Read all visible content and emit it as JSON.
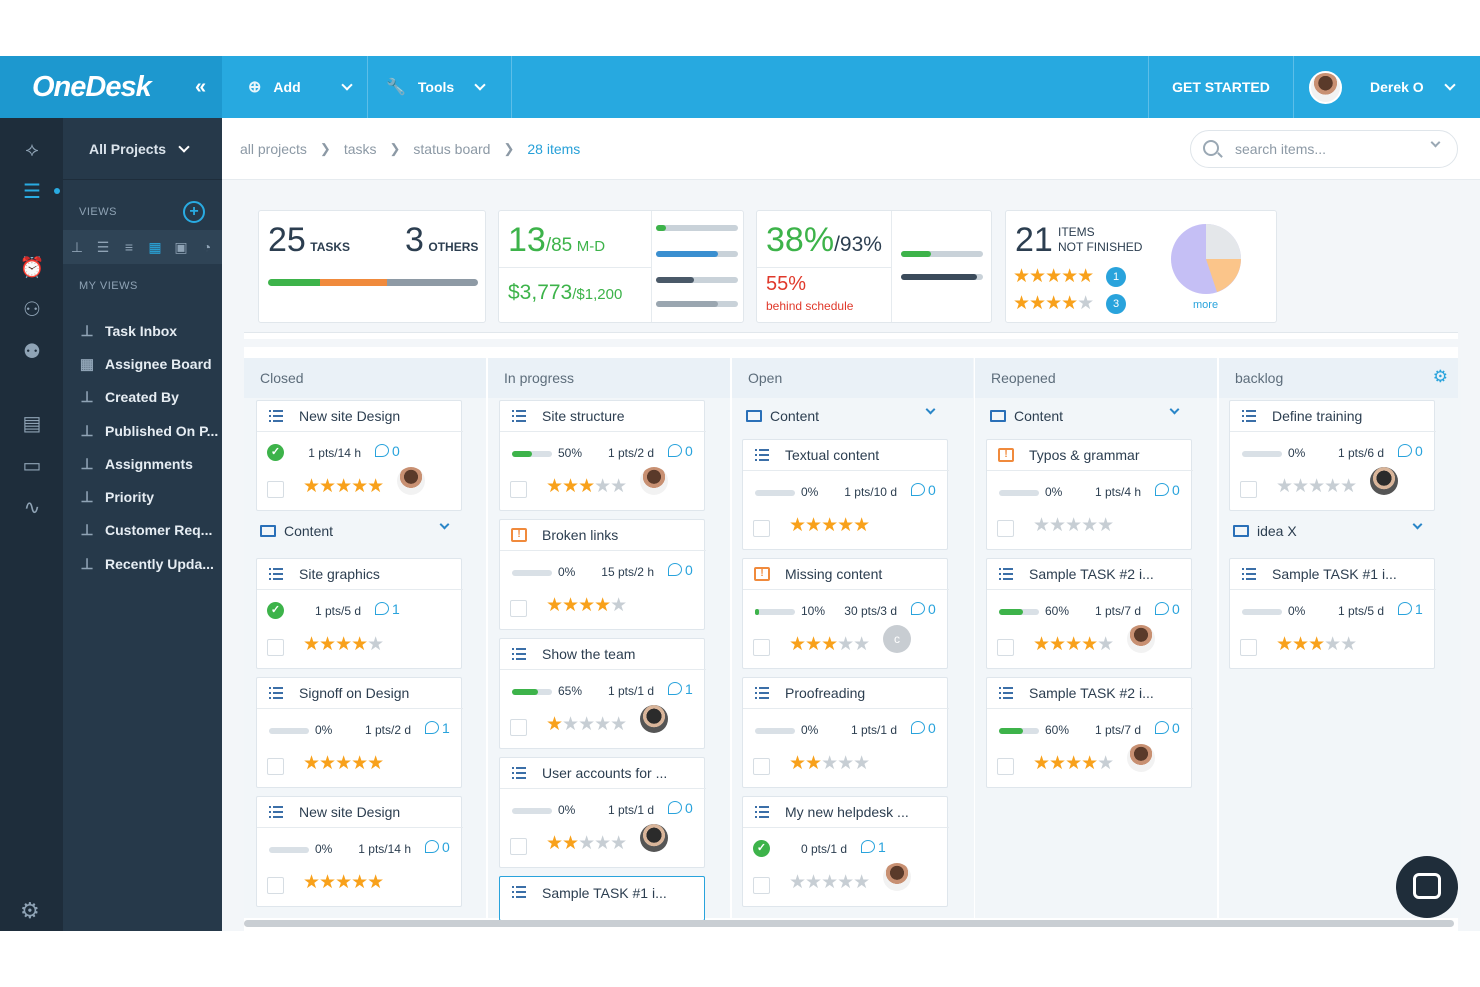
{
  "app": {
    "logo": "OneDesk",
    "collapse": "«"
  },
  "topbar": {
    "add_label": "Add",
    "tools_label": "Tools",
    "get_started": "GET STARTED",
    "user_name": "Derek O"
  },
  "sidebar": {
    "project_selector": "All Projects",
    "views_heading": "VIEWS",
    "my_views_heading": "MY VIEWS",
    "items": [
      {
        "label": "Task Inbox"
      },
      {
        "label": "Assignee Board"
      },
      {
        "label": "Created By"
      },
      {
        "label": "Published On P..."
      },
      {
        "label": "Assignments"
      },
      {
        "label": "Priority"
      },
      {
        "label": "Customer Req..."
      },
      {
        "label": "Recently Upda..."
      }
    ]
  },
  "breadcrumb": {
    "items": [
      "all projects",
      "tasks",
      "status board"
    ],
    "current": "28 items"
  },
  "search": {
    "placeholder": "search items..."
  },
  "stats": {
    "tasks_count": "25",
    "tasks_label": "TASKS",
    "others_count": "3",
    "others_label": "OTHERS",
    "md_value": "13",
    "md_total": "/85",
    "md_unit": "M-D",
    "cost_value": "$3,773",
    "cost_total": "/$1,200",
    "pct_done": "38%",
    "pct_total": "/93%",
    "behind_pct": "55%",
    "behind_label": "behind schedule",
    "items_count": "21",
    "items_label_1": "ITEMS",
    "items_label_2": "NOT FINISHED",
    "rating_badge_1": "1",
    "rating_badge_2": "3",
    "more": "more"
  },
  "columns": [
    {
      "title": "Closed"
    },
    {
      "title": "In progress"
    },
    {
      "title": "Open"
    },
    {
      "title": "Reopened"
    },
    {
      "title": "backlog"
    }
  ],
  "folders": {
    "closed_content": "Content",
    "open_content": "Content",
    "reopened_content": "Content",
    "backlog_idea": "idea X"
  },
  "cards": {
    "c1": {
      "title": "New site Design",
      "pts": "1 pts/14 h",
      "comments": "0"
    },
    "c2": {
      "title": "Site graphics",
      "pts": "1 pts/5 d",
      "comments": "1"
    },
    "c3": {
      "title": "Signoff on Design",
      "pct": "0%",
      "pts": "1 pts/2 d",
      "comments": "1"
    },
    "c4": {
      "title": "New site Design",
      "pct": "0%",
      "pts": "1 pts/14 h",
      "comments": "0"
    },
    "p1": {
      "title": "Site structure",
      "pct": "50%",
      "pts": "1 pts/2 d",
      "comments": "0"
    },
    "p2": {
      "title": "Broken links",
      "pct": "0%",
      "pts": "15 pts/2 h",
      "comments": "0"
    },
    "p3": {
      "title": "Show the team",
      "pct": "65%",
      "pts": "1 pts/1 d",
      "comments": "1"
    },
    "p4": {
      "title": "User accounts for ...",
      "pct": "0%",
      "pts": "1 pts/1 d",
      "comments": "0"
    },
    "p5": {
      "title": "Sample TASK #1 i..."
    },
    "o1": {
      "title": "Textual content",
      "pct": "0%",
      "pts": "1 pts/10 d",
      "comments": "0"
    },
    "o2": {
      "title": "Missing content",
      "pct": "10%",
      "pts": "30 pts/3 d",
      "comments": "0",
      "avatar_letter": "c"
    },
    "o3": {
      "title": "Proofreading",
      "pct": "0%",
      "pts": "1 pts/1 d",
      "comments": "0"
    },
    "o4": {
      "title": "My new helpdesk ...",
      "pts": "0 pts/1 d",
      "comments": "1"
    },
    "r1": {
      "title": "Typos & grammar",
      "pct": "0%",
      "pts": "1 pts/4 h",
      "comments": "0"
    },
    "r2": {
      "title": "Sample TASK #2 i...",
      "pct": "60%",
      "pts": "1 pts/7 d",
      "comments": "0"
    },
    "r3": {
      "title": "Sample TASK #2 i...",
      "pct": "60%",
      "pts": "1 pts/7 d",
      "comments": "0"
    },
    "b1": {
      "title": "Define training",
      "pct": "0%",
      "pts": "1 pts/6 d",
      "comments": "0"
    },
    "b2": {
      "title": "Sample TASK #1 i...",
      "pct": "0%",
      "pts": "1 pts/5 d",
      "comments": "1"
    }
  },
  "colors": {
    "brand": "#27a9e0",
    "sidebar": "#26394a",
    "success": "#3db34a",
    "warning": "#f8a11b",
    "danger": "#e0392b"
  }
}
